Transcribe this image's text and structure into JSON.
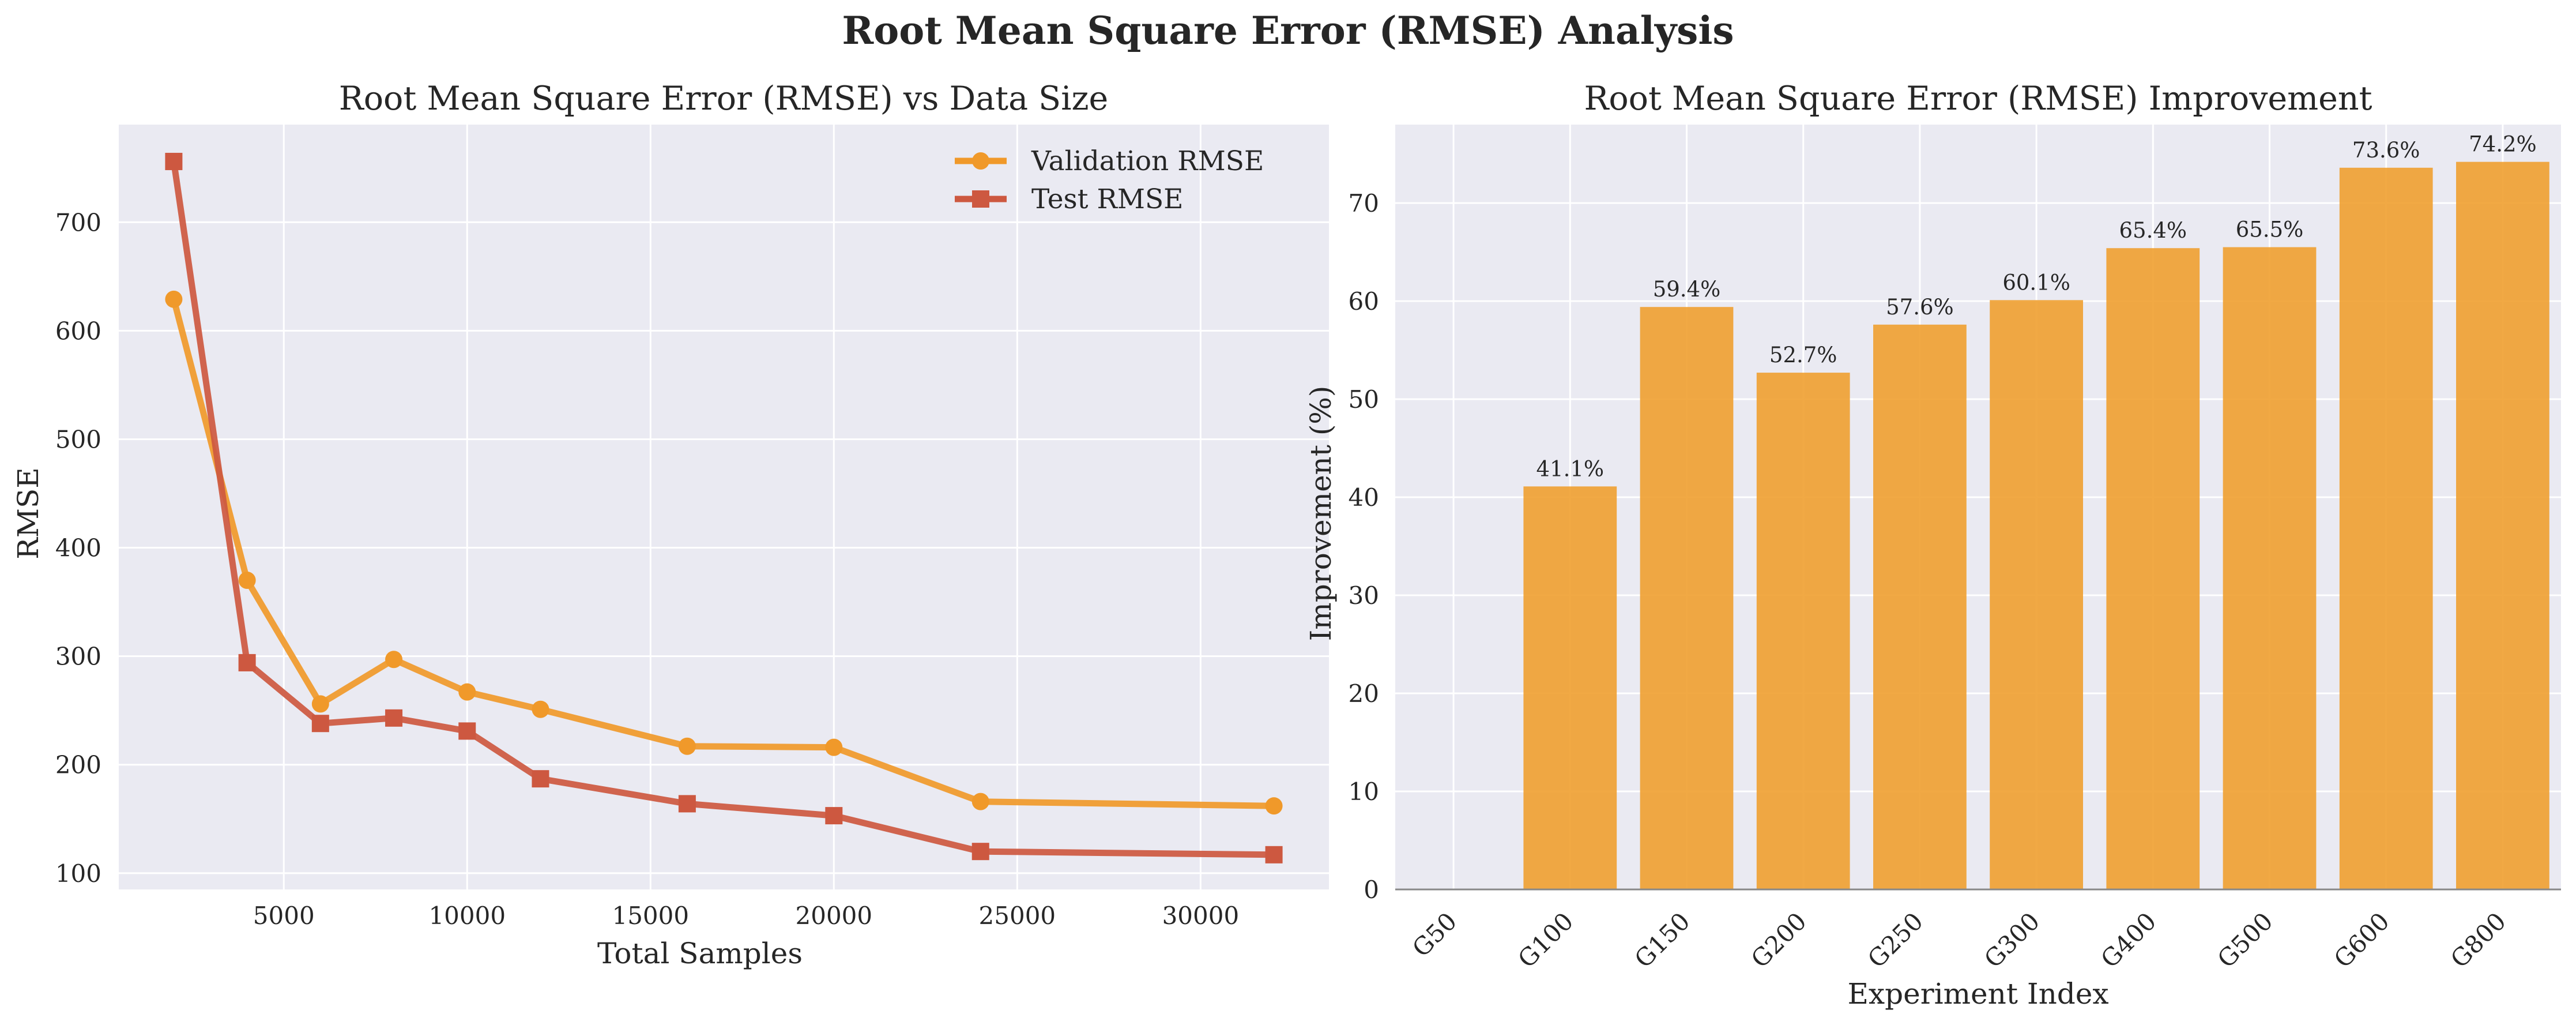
{
  "figure": {
    "title": "Root Mean Square Error (RMSE) Analysis"
  },
  "chart_data": [
    {
      "type": "line",
      "title": "Root Mean Square Error (RMSE) vs Data Size",
      "xlabel": "Total Samples",
      "ylabel": "RMSE",
      "x": [
        2000,
        4000,
        6000,
        8000,
        10000,
        12000,
        16000,
        20000,
        24000,
        32000
      ],
      "xlim": [
        500,
        33500
      ],
      "ylim": [
        85,
        790
      ],
      "xticks": [
        5000,
        10000,
        15000,
        20000,
        25000,
        30000
      ],
      "yticks": [
        100,
        200,
        300,
        400,
        500,
        600,
        700
      ],
      "grid": true,
      "legend": "top-right",
      "series": [
        {
          "name": "Validation RMSE",
          "color": "#f0992a",
          "marker": "circle",
          "values": [
            629,
            370,
            256,
            297,
            267,
            251,
            217,
            216,
            166,
            162
          ]
        },
        {
          "name": "Test RMSE",
          "color": "#cd5840",
          "marker": "square",
          "values": [
            756,
            294,
            238,
            243,
            231,
            187,
            164,
            153,
            120,
            117
          ]
        }
      ]
    },
    {
      "type": "bar",
      "title": "Root Mean Square Error (RMSE) Improvement",
      "xlabel": "Experiment Index",
      "ylabel": "Improvement (%)",
      "categories": [
        "G50",
        "G100",
        "G150",
        "G200",
        "G250",
        "G300",
        "G400",
        "G500",
        "G600",
        "G800"
      ],
      "values": [
        0,
        41.1,
        59.4,
        52.7,
        57.6,
        60.1,
        65.4,
        65.5,
        73.6,
        74.2
      ],
      "bar_labels": [
        "",
        "41.1%",
        "59.4%",
        "52.7%",
        "57.6%",
        "60.1%",
        "65.4%",
        "65.5%",
        "73.6%",
        "74.2%"
      ],
      "ylim": [
        0,
        78
      ],
      "yticks": [
        0,
        10,
        20,
        30,
        40,
        50,
        60,
        70
      ],
      "color": "#f0a030",
      "grid": true
    }
  ]
}
